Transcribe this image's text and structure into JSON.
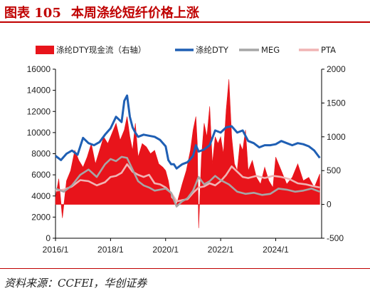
{
  "header": {
    "figure_label": "图表 105",
    "title": "本周涤纶短纤价格上涨"
  },
  "footer": {
    "source": "资料来源：CCFEI，华创证券"
  },
  "colors": {
    "accent": "#c00000",
    "cashflow": "#e8141b",
    "dty": "#1f5fb4",
    "meg": "#a6a6a6",
    "pta": "#f0b4b4"
  },
  "chart_data": {
    "type": "line",
    "x_axis": {
      "ticks": [
        "2016/1",
        "2018/1",
        "2020/1",
        "2022/1",
        "2024/1"
      ],
      "range": [
        "2016/1",
        "2025/9"
      ]
    },
    "y_left": {
      "range": [
        0,
        16000
      ],
      "ticks": [
        0,
        2000,
        4000,
        6000,
        8000,
        10000,
        12000,
        14000,
        16000
      ]
    },
    "y_right": {
      "range": [
        -500,
        2000
      ],
      "ticks": [
        -500,
        0,
        500,
        1000,
        1500,
        2000
      ]
    },
    "legend_position": "top",
    "series": [
      {
        "name": "涤纶DTY现金流（右轴）",
        "type": "area",
        "axis": "right",
        "x": [
          2016.0,
          2016.12,
          2016.25,
          2016.4,
          2016.55,
          2016.7,
          2016.85,
          2017.0,
          2017.15,
          2017.3,
          2017.45,
          2017.6,
          2017.75,
          2017.9,
          2018.05,
          2018.2,
          2018.35,
          2018.5,
          2018.6,
          2018.7,
          2018.8,
          2018.9,
          2019.0,
          2019.15,
          2019.3,
          2019.45,
          2019.6,
          2019.75,
          2019.9,
          2020.0,
          2020.1,
          2020.2,
          2020.3,
          2020.4,
          2020.5,
          2020.6,
          2020.75,
          2020.9,
          2021.0,
          2021.1,
          2021.15,
          2021.2,
          2021.3,
          2021.4,
          2021.5,
          2021.6,
          2021.7,
          2021.8,
          2021.9,
          2022.0,
          2022.1,
          2022.2,
          2022.3,
          2022.4,
          2022.5,
          2022.6,
          2022.7,
          2022.8,
          2022.9,
          2023.0,
          2023.15,
          2023.3,
          2023.45,
          2023.6,
          2023.75,
          2023.9,
          2024.0,
          2024.2,
          2024.4,
          2024.6,
          2024.8,
          2025.0,
          2025.2,
          2025.4,
          2025.6
        ],
        "values": [
          100,
          380,
          -200,
          350,
          500,
          800,
          650,
          550,
          700,
          900,
          600,
          800,
          1000,
          900,
          1050,
          1200,
          950,
          1100,
          1300,
          1000,
          800,
          1200,
          700,
          900,
          850,
          750,
          800,
          600,
          550,
          500,
          350,
          100,
          50,
          0,
          150,
          300,
          500,
          800,
          1100,
          1300,
          900,
          -350,
          700,
          1200,
          1000,
          1450,
          600,
          1000,
          900,
          1000,
          750,
          1400,
          1850,
          1000,
          600,
          500,
          900,
          800,
          1100,
          500,
          650,
          400,
          300,
          550,
          350,
          250,
          700,
          500,
          300,
          400,
          600,
          350,
          400,
          250,
          450
        ]
      },
      {
        "name": "涤纶DTY",
        "type": "line",
        "axis": "left",
        "x": [
          2016.0,
          2016.2,
          2016.4,
          2016.6,
          2016.8,
          2017.0,
          2017.2,
          2017.4,
          2017.6,
          2017.8,
          2018.0,
          2018.2,
          2018.4,
          2018.5,
          2018.6,
          2018.7,
          2018.8,
          2018.9,
          2019.0,
          2019.2,
          2019.4,
          2019.6,
          2019.8,
          2020.0,
          2020.1,
          2020.2,
          2020.3,
          2020.4,
          2020.6,
          2020.8,
          2021.0,
          2021.1,
          2021.2,
          2021.4,
          2021.6,
          2021.8,
          2022.0,
          2022.2,
          2022.4,
          2022.6,
          2022.8,
          2023.0,
          2023.2,
          2023.4,
          2023.6,
          2023.8,
          2024.0,
          2024.2,
          2024.4,
          2024.6,
          2024.8,
          2025.0,
          2025.2,
          2025.4,
          2025.6
        ],
        "values": [
          7800,
          7400,
          8000,
          8300,
          7900,
          9500,
          9000,
          8800,
          9100,
          9800,
          10400,
          11500,
          11000,
          13000,
          13500,
          11500,
          10500,
          10000,
          9600,
          9800,
          9700,
          9600,
          9300,
          8700,
          7400,
          7000,
          7000,
          6600,
          7000,
          7200,
          7800,
          8800,
          8200,
          8400,
          8800,
          10200,
          10000,
          10500,
          10600,
          10000,
          10200,
          9200,
          9000,
          8600,
          8800,
          8800,
          8900,
          9200,
          9000,
          8800,
          9000,
          8900,
          8700,
          8300,
          7600
        ]
      },
      {
        "name": "MEG",
        "type": "line",
        "axis": "left",
        "x": [
          2016.0,
          2016.3,
          2016.6,
          2016.9,
          2017.2,
          2017.5,
          2017.8,
          2018.0,
          2018.2,
          2018.4,
          2018.6,
          2018.8,
          2019.0,
          2019.2,
          2019.4,
          2019.6,
          2019.8,
          2020.0,
          2020.2,
          2020.4,
          2020.6,
          2020.8,
          2021.0,
          2021.2,
          2021.4,
          2021.6,
          2021.8,
          2022.0,
          2022.3,
          2022.6,
          2022.9,
          2023.2,
          2023.5,
          2023.8,
          2024.1,
          2024.4,
          2024.7,
          2025.0,
          2025.3,
          2025.6
        ],
        "values": [
          4700,
          4400,
          5000,
          6000,
          6500,
          5800,
          7000,
          7500,
          7300,
          7700,
          7600,
          6500,
          5400,
          5000,
          4800,
          4500,
          4600,
          4700,
          4300,
          3000,
          3500,
          3800,
          4500,
          5800,
          5100,
          5400,
          5900,
          5500,
          5100,
          4400,
          4200,
          4300,
          4100,
          4200,
          4700,
          4600,
          4400,
          4500,
          4700,
          4400
        ]
      },
      {
        "name": "PTA",
        "type": "line",
        "axis": "left",
        "x": [
          2016.0,
          2016.3,
          2016.6,
          2016.9,
          2017.2,
          2017.5,
          2017.8,
          2018.0,
          2018.2,
          2018.4,
          2018.6,
          2018.8,
          2019.0,
          2019.2,
          2019.4,
          2019.6,
          2019.8,
          2020.0,
          2020.2,
          2020.4,
          2020.6,
          2020.8,
          2021.0,
          2021.2,
          2021.4,
          2021.6,
          2021.8,
          2022.0,
          2022.2,
          2022.4,
          2022.6,
          2022.8,
          2023.0,
          2023.3,
          2023.6,
          2023.9,
          2024.2,
          2024.5,
          2024.8,
          2025.1,
          2025.4,
          2025.6
        ],
        "values": [
          4500,
          4600,
          4900,
          5500,
          5400,
          5000,
          5300,
          5800,
          5900,
          6200,
          7000,
          6300,
          6000,
          5800,
          6000,
          5200,
          5100,
          4800,
          4300,
          3500,
          3600,
          3700,
          4300,
          4800,
          4900,
          5200,
          5000,
          5400,
          6000,
          6800,
          6300,
          5800,
          5700,
          5900,
          5700,
          5900,
          5800,
          5600,
          5200,
          5100,
          4900,
          4800
        ]
      }
    ]
  }
}
